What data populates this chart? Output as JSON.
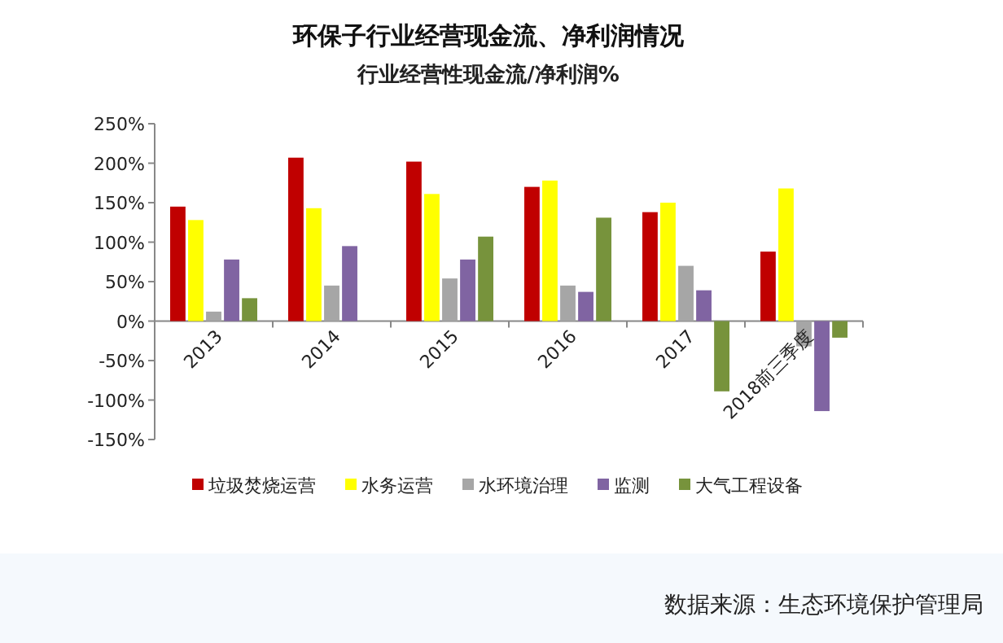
{
  "chart_data": {
    "type": "bar",
    "title": "环保子行业经营现金流、净利润情况",
    "subtitle": "行业经营性现金流/净利润%",
    "categories": [
      "2013",
      "2014",
      "2015",
      "2016",
      "2017",
      "2018前三季度"
    ],
    "series": [
      {
        "name": "垃圾焚烧运营",
        "color": "#c00000",
        "values": [
          145,
          207,
          202,
          170,
          138,
          88
        ]
      },
      {
        "name": "水务运营",
        "color": "#ffff00",
        "values": [
          128,
          143,
          161,
          178,
          150,
          168
        ]
      },
      {
        "name": "水环境治理",
        "color": "#a6a6a6",
        "values": [
          12,
          45,
          54,
          45,
          70,
          -32
        ]
      },
      {
        "name": "监测",
        "color": "#8064a2",
        "values": [
          78,
          95,
          78,
          37,
          39,
          -114
        ]
      },
      {
        "name": "大气工程设备",
        "color": "#77933c",
        "values": [
          29,
          null,
          107,
          131,
          -89,
          -21
        ]
      }
    ],
    "ylim": [
      -150,
      250
    ],
    "yticks": [
      {
        "value": -150,
        "label": "-150%"
      },
      {
        "value": -100,
        "label": "-100%"
      },
      {
        "value": -50,
        "label": "-50%"
      },
      {
        "value": 0,
        "label": "0%"
      },
      {
        "value": 50,
        "label": "50%"
      },
      {
        "value": 100,
        "label": "100%"
      },
      {
        "value": 150,
        "label": "150%"
      },
      {
        "value": 200,
        "label": "200%"
      },
      {
        "value": 250,
        "label": "250%"
      }
    ],
    "grid": false,
    "legend": "bottom",
    "annotations": [
      "数据来源：生态环境保护管理局"
    ]
  }
}
